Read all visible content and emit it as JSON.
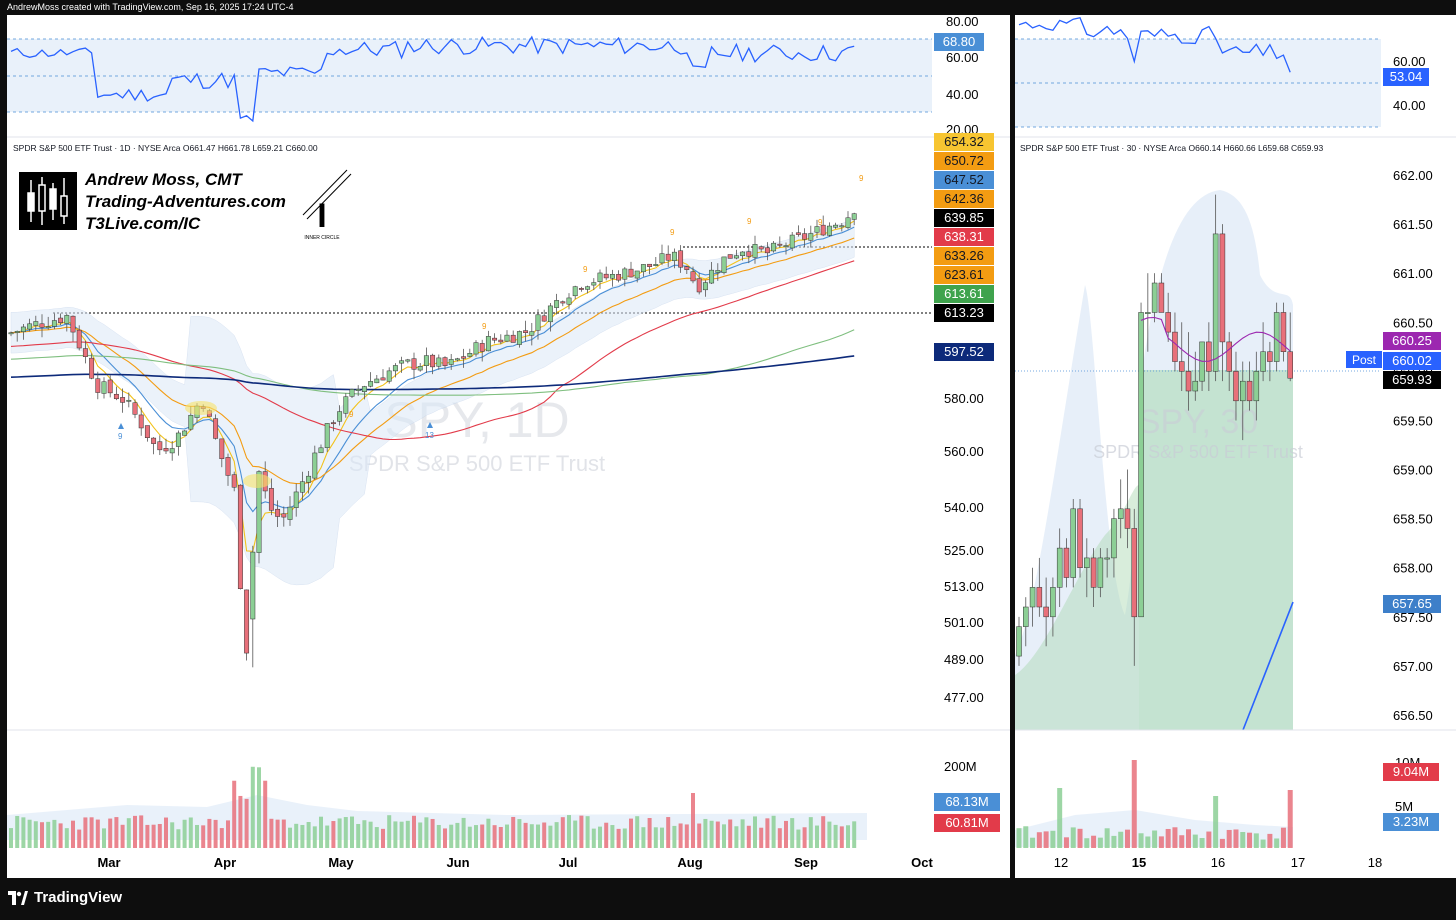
{
  "header": {
    "credit": "AndrewMoss created with TradingView.com, Sep 16, 2025 17:24 UTC-4"
  },
  "footer": {
    "brand": "TradingView",
    "brand_icon": "tradingview-logo-icon"
  },
  "colors": {
    "up": "#8ccf95",
    "down": "#e8707a",
    "ema5": "#f2c21a",
    "ema10": "#4a8fd6",
    "ema21": "#f39c12",
    "sma50": "#e23b4a",
    "sma100": "#7fbf7f",
    "sma200": "#0d2a7a",
    "rsi": "#2962ff",
    "band": "#dbe8f7"
  },
  "watermark": {
    "logo_line1": "Andrew Moss, CMT",
    "logo_line2": "Trading-Adventures.com",
    "logo_line3": "T3Live.com/IC",
    "inner_circle": "INNER CIRCLE",
    "inner_circle_letter": "I"
  },
  "left_chart": {
    "legend": "SPDR S&P 500 ETF Trust · 1D · NYSE Arca   O661.47  H661.78  L659.21  C660.00",
    "watermark_symbol": "SPY, 1D",
    "watermark_name": "SPDR S&P 500 ETF Trust",
    "rsi_axis": [
      "80.00",
      "60.00",
      "40.00",
      "20.00"
    ],
    "rsi_value_label": "68.80",
    "price_axis": [
      "580.00",
      "560.00",
      "540.00",
      "525.00",
      "513.00",
      "501.00",
      "489.00",
      "477.00"
    ],
    "price_labels": [
      {
        "text": "654.32",
        "bg": "#f7c531",
        "fg": "#131722"
      },
      {
        "text": "650.72",
        "bg": "#f39c12",
        "fg": "#131722"
      },
      {
        "text": "647.52",
        "bg": "#4a8fd6",
        "fg": "#131722"
      },
      {
        "text": "642.36",
        "bg": "#f39c12",
        "fg": "#131722"
      },
      {
        "text": "639.85",
        "bg": "#000000",
        "fg": "#ffffff"
      },
      {
        "text": "638.31",
        "bg": "#e23b4a",
        "fg": "#ffffff"
      },
      {
        "text": "633.26",
        "bg": "#f39c12",
        "fg": "#131722"
      },
      {
        "text": "623.61",
        "bg": "#f39c12",
        "fg": "#131722"
      },
      {
        "text": "613.61",
        "bg": "#3fa34d",
        "fg": "#ffffff"
      },
      {
        "text": "613.23",
        "bg": "#000000",
        "fg": "#ffffff"
      },
      {
        "text": "597.52",
        "bg": "#0d2a7a",
        "fg": "#ffffff"
      }
    ],
    "volume_axis": [
      "200M"
    ],
    "volume_labels": [
      {
        "text": "68.13M",
        "bg": "#4a8fd6",
        "fg": "#ffffff"
      },
      {
        "text": "60.81M",
        "bg": "#e23b4a",
        "fg": "#ffffff"
      }
    ],
    "time_axis": [
      "Mar",
      "Apr",
      "May",
      "Jun",
      "Jul",
      "Aug",
      "Sep",
      "Oct"
    ],
    "setup_labels": [
      "9",
      "9",
      "13",
      "9",
      "9",
      "9",
      "9",
      "9",
      "9"
    ]
  },
  "right_chart": {
    "legend": "SPDR S&P 500 ETF Trust · 30 · NYSE Arca   O660.14  H660.66  L659.68  C659.93",
    "watermark_symbol": "SPY, 30",
    "watermark_name": "SPDR S&P 500 ETF Trust",
    "rsi_axis": [
      "60.00",
      "40.00"
    ],
    "rsi_value_label": "53.04",
    "price_axis": [
      "662.00",
      "661.50",
      "661.00",
      "660.50",
      "660.00",
      "659.50",
      "659.00",
      "658.50",
      "658.00",
      "657.50",
      "657.00",
      "656.50"
    ],
    "post_label": "Post",
    "price_labels": [
      {
        "text": "660.25",
        "bg": "#9c27b0",
        "fg": "#ffffff"
      },
      {
        "text": "660.02",
        "bg": "#2962ff",
        "fg": "#ffffff"
      },
      {
        "text": "659.93",
        "bg": "#000000",
        "fg": "#ffffff"
      },
      {
        "text": "657.65",
        "bg": "#3d7fc9",
        "fg": "#ffffff"
      }
    ],
    "volume_axis": [
      "10M",
      "5M"
    ],
    "volume_labels": [
      {
        "text": "9.04M",
        "bg": "#e23b4a",
        "fg": "#ffffff"
      },
      {
        "text": "3.23M",
        "bg": "#4a8fd6",
        "fg": "#ffffff"
      }
    ],
    "time_axis": [
      "12",
      "15",
      "16",
      "17",
      "18"
    ]
  },
  "chart_data": [
    {
      "type": "candlestick",
      "title": "SPDR S&P 500 ETF Trust · 1D · NYSE Arca",
      "symbol": "SPY",
      "interval": "1D",
      "ohlc_last": {
        "open": 661.47,
        "high": 661.78,
        "low": 659.21,
        "close": 660.0
      },
      "x": [
        "Mar",
        "Apr",
        "May",
        "Jun",
        "Jul",
        "Aug",
        "Sep",
        "Oct"
      ],
      "close_path": [
        {
          "x": "Feb (mid)",
          "y": 605
        },
        {
          "x": "Feb (late)",
          "y": 612
        },
        {
          "x": "Mar",
          "y": 583
        },
        {
          "x": "Mar (late)",
          "y": 575
        },
        {
          "x": "Apr",
          "y": 568
        },
        {
          "x": "Apr 8",
          "y": 496
        },
        {
          "x": "Apr 9",
          "y": 548
        },
        {
          "x": "Apr (late)",
          "y": 540
        },
        {
          "x": "May",
          "y": 560
        },
        {
          "x": "May (mid)",
          "y": 592
        },
        {
          "x": "Jun",
          "y": 590
        },
        {
          "x": "Jun (late)",
          "y": 605
        },
        {
          "x": "Jul",
          "y": 620
        },
        {
          "x": "Aug",
          "y": 628
        },
        {
          "x": "Aug (late)",
          "y": 645
        },
        {
          "x": "Sep",
          "y": 647
        },
        {
          "x": "Sep 16",
          "y": 660
        }
      ],
      "moving_average_last": {
        "ema5": 654.32,
        "ema10": 650.72,
        "ema21": 647.52,
        "sma50": 638.31,
        "sma100": 613.61,
        "sma200": 597.52
      },
      "horizontal_levels": [
        639.85,
        613.23
      ],
      "rsi": {
        "last": 68.8,
        "levels": [
          70,
          30
        ],
        "axis": [
          20,
          40,
          60,
          80
        ]
      },
      "volume": {
        "last": "60.81M",
        "average": "68.13M"
      },
      "ylim": [
        470,
        662
      ]
    },
    {
      "type": "candlestick",
      "title": "SPDR S&P 500 ETF Trust · 30 · NYSE Arca",
      "symbol": "SPY",
      "interval": "30",
      "ohlc_last": {
        "open": 660.14,
        "high": 660.66,
        "low": 659.68,
        "close": 659.93
      },
      "x": [
        "12",
        "15",
        "16",
        "17",
        "18"
      ],
      "candles": [
        [
          657.1,
          657.5,
          657.0,
          657.4
        ],
        [
          657.4,
          657.7,
          657.2,
          657.6
        ],
        [
          657.6,
          658.0,
          657.4,
          657.8
        ],
        [
          657.8,
          658.1,
          657.5,
          657.6
        ],
        [
          657.6,
          657.9,
          657.2,
          657.5
        ],
        [
          657.5,
          657.9,
          657.3,
          657.8
        ],
        [
          657.8,
          658.4,
          657.6,
          658.2
        ],
        [
          658.2,
          658.3,
          657.8,
          657.9
        ],
        [
          657.9,
          658.7,
          657.8,
          658.6
        ],
        [
          658.6,
          658.7,
          657.9,
          658.0
        ],
        [
          658.0,
          658.3,
          657.7,
          658.1
        ],
        [
          658.1,
          658.2,
          657.6,
          657.8
        ],
        [
          657.8,
          658.2,
          657.7,
          658.1
        ],
        [
          658.1,
          658.2,
          657.9,
          658.1
        ],
        [
          658.1,
          658.6,
          657.9,
          658.5
        ],
        [
          658.5,
          658.9,
          658.3,
          658.6
        ],
        [
          658.6,
          659.0,
          658.2,
          658.4
        ],
        [
          658.4,
          658.6,
          657.0,
          657.5
        ],
        [
          657.5,
          660.7,
          657.5,
          660.6
        ],
        [
          660.6,
          661.0,
          660.2,
          660.6
        ],
        [
          660.6,
          661.0,
          660.5,
          660.9
        ],
        [
          660.9,
          661.0,
          660.6,
          660.6
        ],
        [
          660.6,
          660.8,
          660.3,
          660.4
        ],
        [
          660.4,
          660.6,
          660.0,
          660.1
        ],
        [
          660.1,
          660.5,
          659.8,
          660.0
        ],
        [
          660.0,
          660.4,
          659.6,
          659.8
        ],
        [
          659.8,
          660.2,
          659.7,
          659.9
        ],
        [
          659.9,
          660.3,
          659.8,
          660.3
        ],
        [
          660.3,
          660.5,
          659.8,
          660.0
        ],
        [
          660.0,
          661.8,
          659.9,
          661.4
        ],
        [
          661.4,
          661.5,
          659.9,
          660.3
        ],
        [
          660.3,
          660.4,
          659.8,
          660.0
        ],
        [
          660.0,
          660.2,
          659.5,
          659.7
        ],
        [
          659.7,
          660.1,
          659.3,
          659.9
        ],
        [
          659.9,
          660.1,
          659.6,
          659.7
        ],
        [
          659.7,
          660.2,
          659.5,
          660.0
        ],
        [
          660.0,
          660.5,
          659.9,
          660.2
        ],
        [
          660.2,
          660.3,
          659.9,
          660.1
        ],
        [
          660.1,
          660.7,
          660.0,
          660.6
        ],
        [
          660.6,
          660.7,
          660.1,
          660.2
        ],
        [
          660.2,
          660.6,
          659.9,
          659.93
        ]
      ],
      "vwap_last": 660.25,
      "post_market": 660.02,
      "rising_line_last": 657.65,
      "rsi": {
        "last": 53.04,
        "levels": [
          70,
          30
        ],
        "axis": [
          40,
          60
        ]
      },
      "volume": {
        "last": "9.04M",
        "average": "3.23M"
      },
      "ylim": [
        656.4,
        662.2
      ]
    }
  ]
}
